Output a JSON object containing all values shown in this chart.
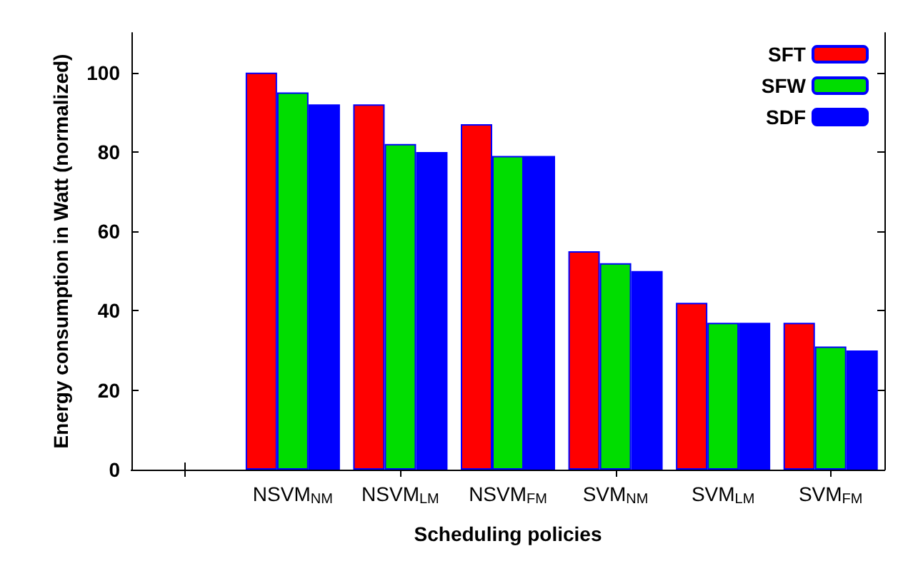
{
  "chart_data": {
    "type": "bar",
    "xlabel": "Scheduling policies",
    "ylabel": "Energy consumption in Watt (normalized)",
    "categories": [
      null,
      "NSVM$_{NM}$",
      "NSVM$_{LM}$",
      "NSVM$_{FM}$",
      "SVM$_{NM}$",
      "SVM$_{LM}$",
      "SVM$_{FM}$"
    ],
    "series": [
      {
        "name": "SFT",
        "color": "#ff0000",
        "values": [
          null,
          100,
          92,
          87,
          55,
          42,
          37
        ]
      },
      {
        "name": "SFW",
        "color": "#00dd00",
        "values": [
          null,
          95,
          82,
          79,
          52,
          37,
          31
        ]
      },
      {
        "name": "SDF",
        "color": "#0000ff",
        "values": [
          null,
          92,
          80,
          79,
          50,
          37,
          30
        ]
      }
    ],
    "ylim": [
      0,
      110
    ],
    "yticks": [
      0,
      20,
      40,
      60,
      80,
      100
    ],
    "grid": false,
    "legend": "top right"
  }
}
